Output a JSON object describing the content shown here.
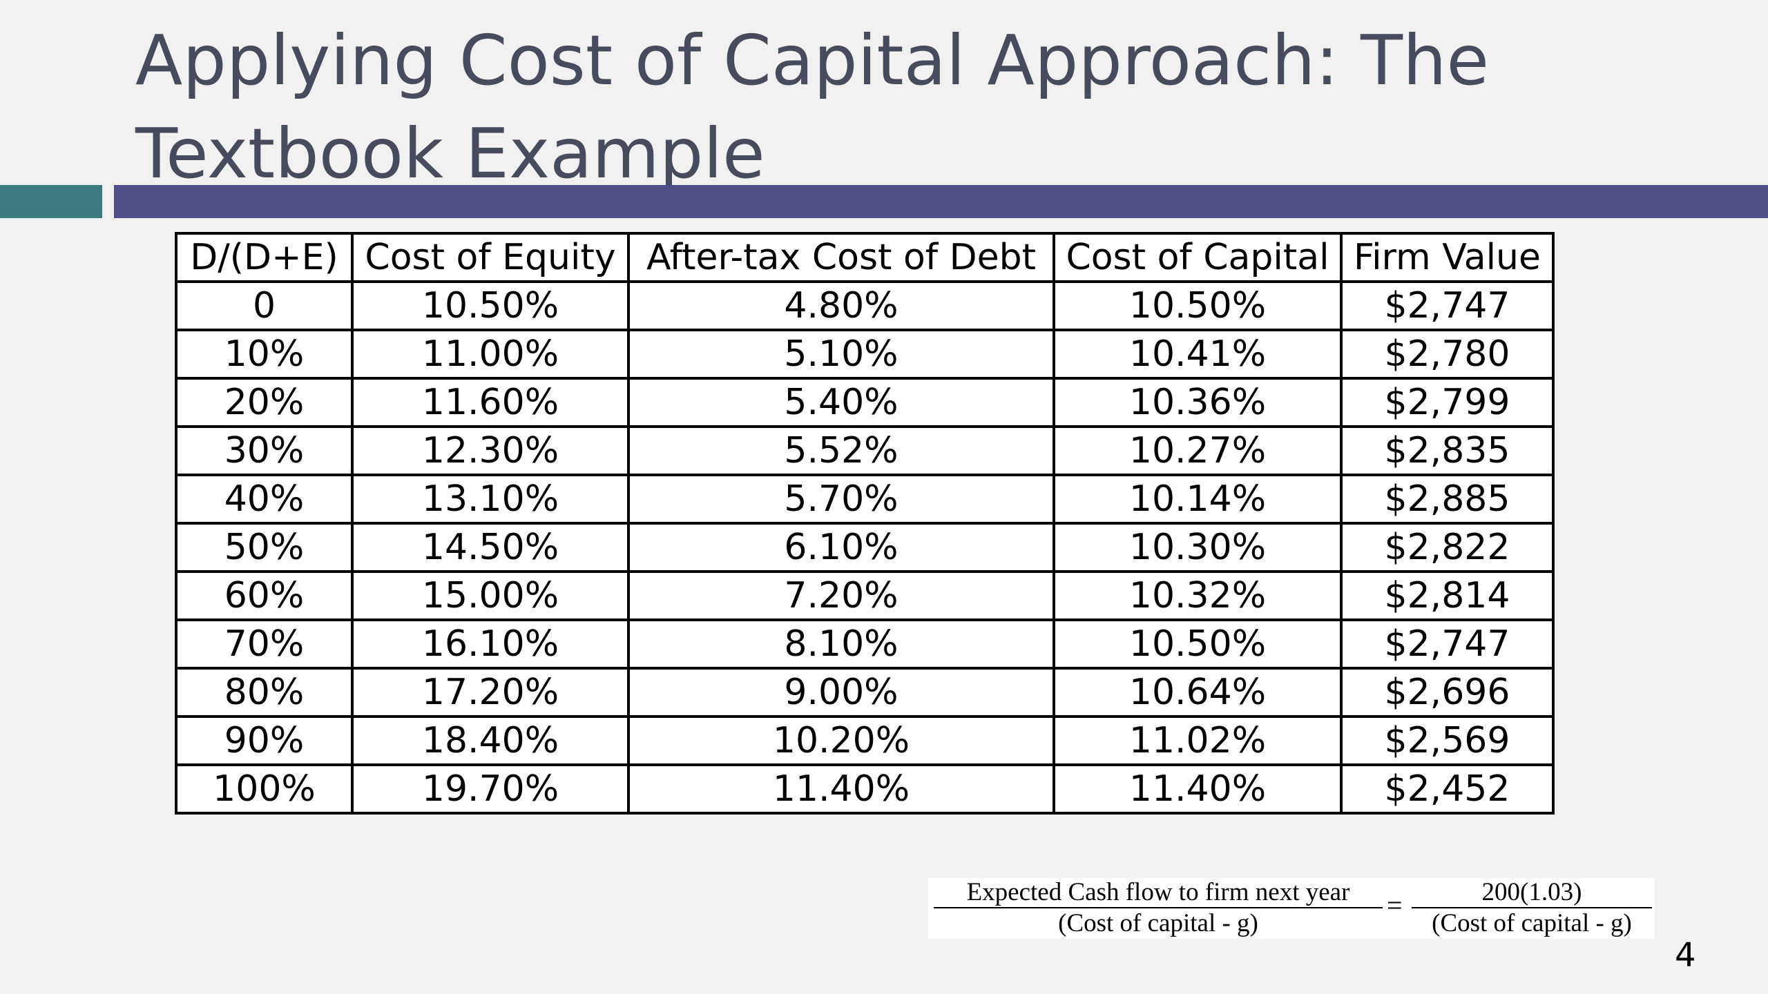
{
  "slide": {
    "title_line1": "Applying Cost of Capital Approach: The",
    "title_line2": "Textbook Example",
    "page_number": "4",
    "colors": {
      "title": "#474b5e",
      "bar_teal": "#3b7b7d",
      "bar_indigo": "#4f5088"
    }
  },
  "table": {
    "headers": [
      "D/(D+E)",
      "Cost of Equity",
      "After-tax Cost of Debt",
      "Cost of Capital",
      "Firm Value"
    ],
    "rows": [
      [
        "0",
        "10.50%",
        "4.80%",
        "10.50%",
        "$2,747"
      ],
      [
        "10%",
        "11.00%",
        "5.10%",
        "10.41%",
        "$2,780"
      ],
      [
        "20%",
        "11.60%",
        "5.40%",
        "10.36%",
        "$2,799"
      ],
      [
        "30%",
        "12.30%",
        "5.52%",
        "10.27%",
        "$2,835"
      ],
      [
        "40%",
        "13.10%",
        "5.70%",
        "10.14%",
        "$2,885"
      ],
      [
        "50%",
        "14.50%",
        "6.10%",
        "10.30%",
        "$2,822"
      ],
      [
        "60%",
        "15.00%",
        "7.20%",
        "10.32%",
        "$2,814"
      ],
      [
        "70%",
        "16.10%",
        "8.10%",
        "10.50%",
        "$2,747"
      ],
      [
        "80%",
        "17.20%",
        "9.00%",
        "10.64%",
        "$2,696"
      ],
      [
        "90%",
        "18.40%",
        "10.20%",
        "11.02%",
        "$2,569"
      ],
      [
        "100%",
        "19.70%",
        "11.40%",
        "11.40%",
        "$2,452"
      ]
    ]
  },
  "formula": {
    "left_numerator": "Expected Cash flow to firm next year",
    "left_denominator": "(Cost of capital  - g)",
    "equals": "=",
    "right_numerator": "200(1.03)",
    "right_denominator": "(Cost of capital  - g)"
  }
}
